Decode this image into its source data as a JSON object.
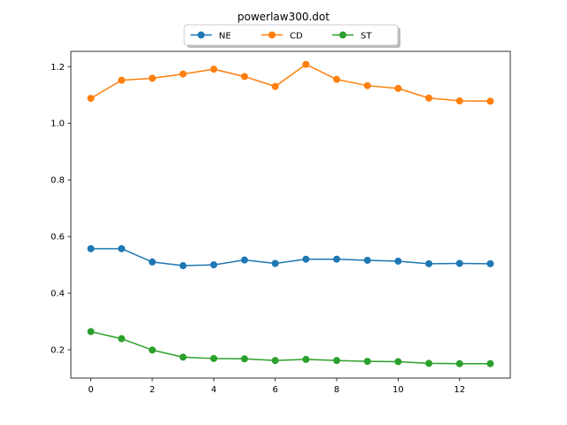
{
  "chart_data": {
    "type": "line",
    "title": "powerlaw300.dot",
    "xlabel": "",
    "ylabel": "",
    "x": [
      0,
      1,
      2,
      3,
      4,
      5,
      6,
      7,
      8,
      9,
      10,
      11,
      12,
      13
    ],
    "xlim": [
      -0.65,
      13.65
    ],
    "ylim": [
      0.1,
      1.254
    ],
    "xticks": [
      0,
      2,
      4,
      6,
      8,
      10,
      12
    ],
    "xtick_labels": [
      "0",
      "2",
      "4",
      "6",
      "8",
      "10",
      "12"
    ],
    "yticks": [
      0.2,
      0.4,
      0.6,
      0.8,
      1.0,
      1.2
    ],
    "ytick_labels": [
      "0.2",
      "0.4",
      "0.6",
      "0.8",
      "1.0",
      "1.2"
    ],
    "grid": false,
    "legend_placement": "top-center",
    "series": [
      {
        "name": "NE",
        "color": "#1f77b4",
        "values": [
          0.557,
          0.557,
          0.51,
          0.497,
          0.5,
          0.517,
          0.505,
          0.52,
          0.52,
          0.516,
          0.513,
          0.504,
          0.505,
          0.504
        ]
      },
      {
        "name": "CD",
        "color": "#ff7f0e",
        "values": [
          1.088,
          1.152,
          1.159,
          1.174,
          1.191,
          1.165,
          1.13,
          1.208,
          1.155,
          1.133,
          1.123,
          1.089,
          1.079,
          1.078
        ]
      },
      {
        "name": "ST",
        "color": "#2ca02c",
        "values": [
          0.264,
          0.239,
          0.199,
          0.174,
          0.169,
          0.168,
          0.162,
          0.166,
          0.162,
          0.159,
          0.158,
          0.152,
          0.151,
          0.151
        ]
      }
    ]
  }
}
